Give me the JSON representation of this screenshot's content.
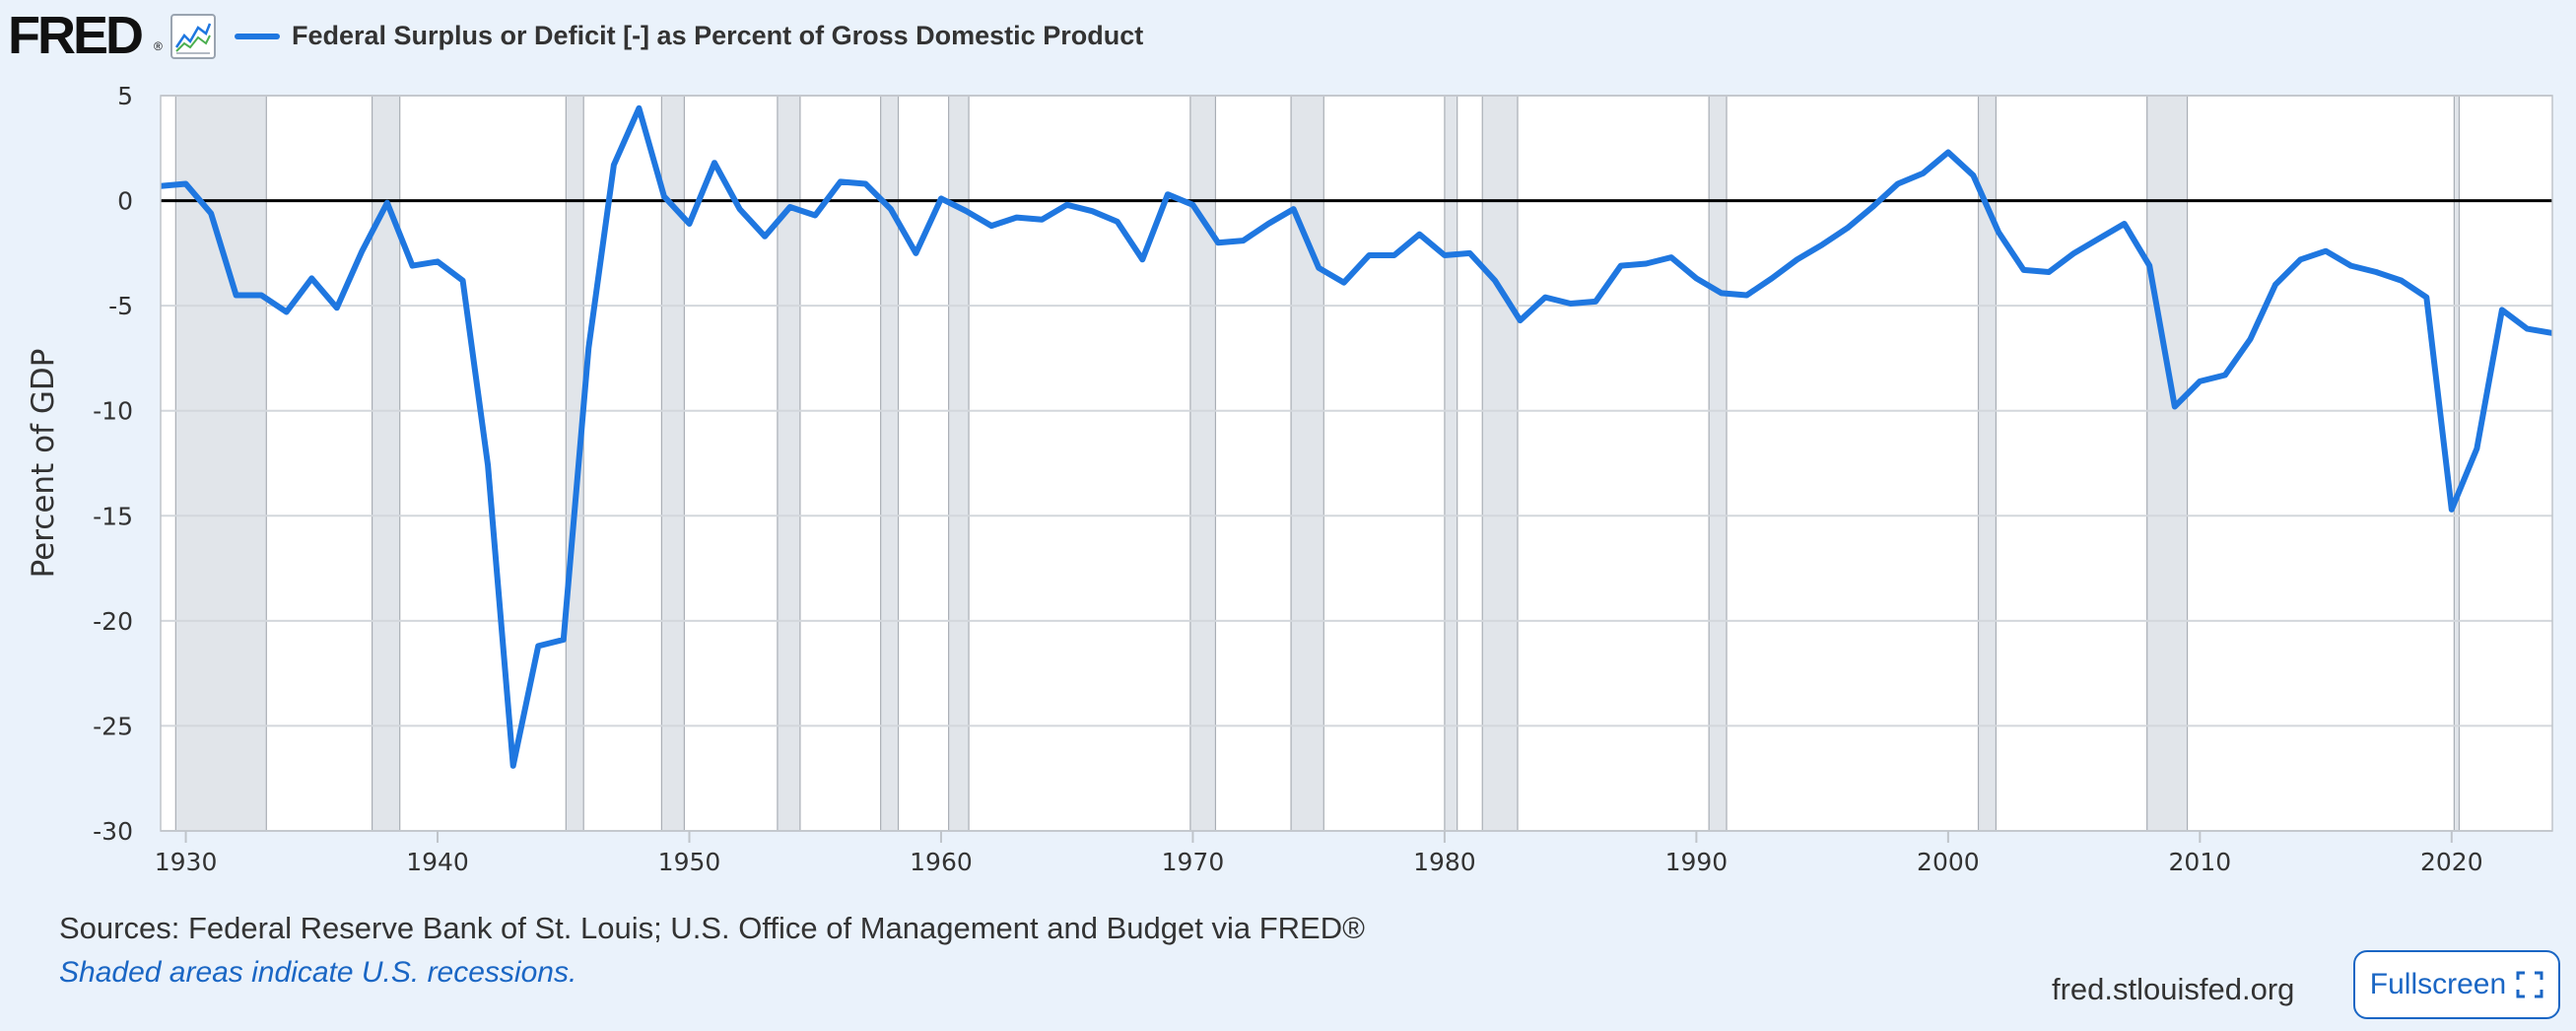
{
  "header": {
    "logo_text": "FRED",
    "logo_mark": "®",
    "icon": "line-chart-icon",
    "series_title": "Federal Surplus or Deficit [-] as Percent of Gross Domestic Product"
  },
  "footer": {
    "sources": "Sources: Federal Reserve Bank of St. Louis; U.S. Office of Management and Budget via FRED®",
    "note": "Shaded areas indicate U.S. recessions.",
    "site": "fred.stlouisfed.org",
    "fullscreen_label": "Fullscreen",
    "fullscreen_icon": "expand-icon"
  },
  "colors": {
    "line": "#1f77e0",
    "recession": "#e1e5ea",
    "zero_line": "#000000",
    "link": "#1a66c4"
  },
  "chart_data": {
    "type": "line",
    "ylabel": "Percent of GDP",
    "xlim": [
      1929,
      2024
    ],
    "ylim": [
      -30,
      5
    ],
    "x_ticks": [
      1930,
      1940,
      1950,
      1960,
      1970,
      1980,
      1990,
      2000,
      2010,
      2020
    ],
    "y_ticks": [
      5,
      0,
      -5,
      -10,
      -15,
      -20,
      -25,
      -30
    ],
    "grid": "horizontal",
    "legend": "top-left",
    "reference_line": 0,
    "recessions": [
      [
        1929.6,
        1933.2
      ],
      [
        1937.4,
        1938.5
      ],
      [
        1945.1,
        1945.8
      ],
      [
        1948.9,
        1949.8
      ],
      [
        1953.5,
        1954.4
      ],
      [
        1957.6,
        1958.3
      ],
      [
        1960.3,
        1961.1
      ],
      [
        1969.9,
        1970.9
      ],
      [
        1973.9,
        1975.2
      ],
      [
        1980.0,
        1980.5
      ],
      [
        1981.5,
        1982.9
      ],
      [
        1990.5,
        1991.2
      ],
      [
        2001.2,
        2001.9
      ],
      [
        2007.9,
        2009.5
      ],
      [
        2020.1,
        2020.3
      ]
    ],
    "series": [
      {
        "name": "Federal Surplus or Deficit [-] as Percent of Gross Domestic Product",
        "x": [
          1929,
          1930,
          1931,
          1932,
          1933,
          1934,
          1935,
          1936,
          1937,
          1938,
          1939,
          1940,
          1941,
          1942,
          1943,
          1944,
          1945,
          1946,
          1947,
          1948,
          1949,
          1950,
          1951,
          1952,
          1953,
          1954,
          1955,
          1956,
          1957,
          1958,
          1959,
          1960,
          1961,
          1962,
          1963,
          1964,
          1965,
          1966,
          1967,
          1968,
          1969,
          1970,
          1971,
          1972,
          1973,
          1974,
          1975,
          1976,
          1977,
          1978,
          1979,
          1980,
          1981,
          1982,
          1983,
          1984,
          1985,
          1986,
          1987,
          1988,
          1989,
          1990,
          1991,
          1992,
          1993,
          1994,
          1995,
          1996,
          1997,
          1998,
          1999,
          2000,
          2001,
          2002,
          2003,
          2004,
          2005,
          2006,
          2007,
          2008,
          2009,
          2010,
          2011,
          2012,
          2013,
          2014,
          2015,
          2016,
          2017,
          2018,
          2019,
          2020,
          2021,
          2022,
          2023,
          2024
        ],
        "y": [
          0.7,
          0.8,
          -0.6,
          -4.5,
          -4.5,
          -5.3,
          -3.7,
          -5.1,
          -2.4,
          -0.1,
          -3.1,
          -2.9,
          -3.8,
          -12.6,
          -26.9,
          -21.2,
          -20.9,
          -7.0,
          1.7,
          4.4,
          0.2,
          -1.1,
          1.8,
          -0.4,
          -1.7,
          -0.3,
          -0.7,
          0.9,
          0.8,
          -0.4,
          -2.5,
          0.1,
          -0.5,
          -1.2,
          -0.8,
          -0.9,
          -0.2,
          -0.5,
          -1.0,
          -2.8,
          0.3,
          -0.2,
          -2.0,
          -1.9,
          -1.1,
          -0.4,
          -3.2,
          -3.9,
          -2.6,
          -2.6,
          -1.6,
          -2.6,
          -2.5,
          -3.8,
          -5.7,
          -4.6,
          -4.9,
          -4.8,
          -3.1,
          -3.0,
          -2.7,
          -3.7,
          -4.4,
          -4.5,
          -3.7,
          -2.8,
          -2.1,
          -1.3,
          -0.3,
          0.8,
          1.3,
          2.3,
          1.2,
          -1.5,
          -3.3,
          -3.4,
          -2.5,
          -1.8,
          -1.1,
          -3.1,
          -9.8,
          -8.6,
          -8.3,
          -6.6,
          -4.0,
          -2.8,
          -2.4,
          -3.1,
          -3.4,
          -3.8,
          -4.6,
          -14.7,
          -11.8,
          -5.2,
          -6.1,
          -6.3
        ]
      }
    ]
  }
}
